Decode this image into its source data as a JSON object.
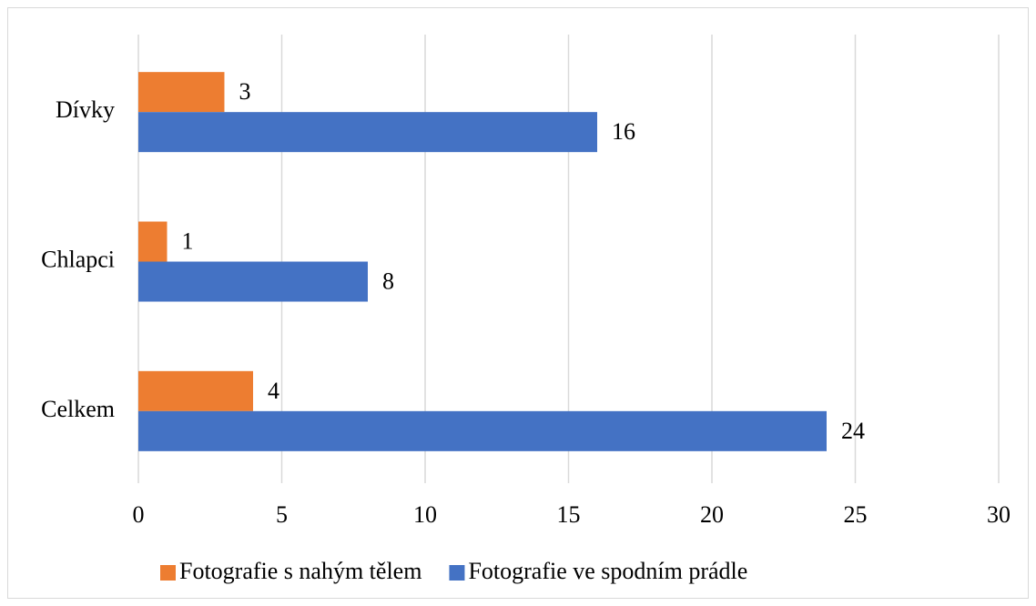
{
  "chart_data": {
    "type": "hbar",
    "categories": [
      "Dívky",
      "Chlapci",
      "Celkem"
    ],
    "series": [
      {
        "name": "Fotografie s nahým tělem",
        "color": "#ed7d31",
        "values": [
          3,
          1,
          4
        ]
      },
      {
        "name": "Fotografie ve spodním prádle",
        "color": "#4472c4",
        "values": [
          16,
          8,
          24
        ]
      }
    ],
    "xlim": [
      0,
      30
    ],
    "xticks": [
      0,
      5,
      10,
      15,
      20,
      25,
      30
    ],
    "grid": true,
    "legend": "bottom"
  }
}
